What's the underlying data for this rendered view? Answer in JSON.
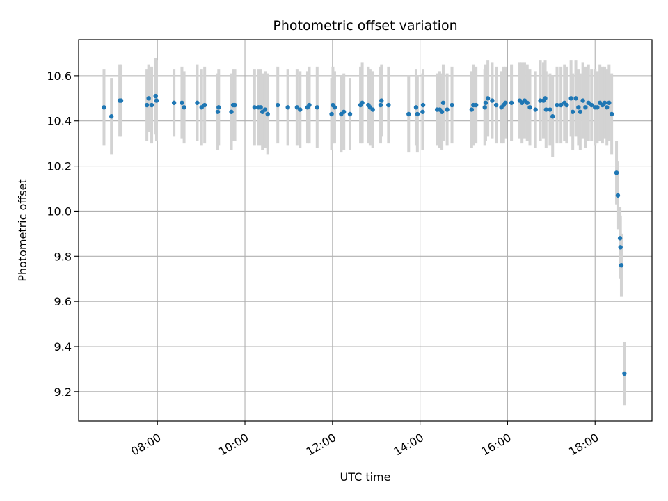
{
  "chart_data": {
    "type": "scatter",
    "title": "Photometric offset variation",
    "xlabel": "UTC time",
    "ylabel": "Photometric offset",
    "x_unit": "hours UTC",
    "xlim": [
      6.2,
      19.3
    ],
    "ylim": [
      9.07,
      10.76
    ],
    "x_ticks": [
      {
        "value": 8,
        "label": "08:00"
      },
      {
        "value": 10,
        "label": "10:00"
      },
      {
        "value": 12,
        "label": "12:00"
      },
      {
        "value": 14,
        "label": "14:00"
      },
      {
        "value": 16,
        "label": "16:00"
      },
      {
        "value": 18,
        "label": "18:00"
      }
    ],
    "y_ticks": [
      {
        "value": 9.2,
        "label": "9.2"
      },
      {
        "value": 9.4,
        "label": "9.4"
      },
      {
        "value": 9.6,
        "label": "9.6"
      },
      {
        "value": 9.8,
        "label": "9.8"
      },
      {
        "value": 10.0,
        "label": "10.0"
      },
      {
        "value": 10.2,
        "label": "10.2"
      },
      {
        "value": 10.4,
        "label": "10.4"
      },
      {
        "value": 10.6,
        "label": "10.6"
      }
    ],
    "grid": true,
    "colors": {
      "point": "#1f77b4",
      "errorbar": "#d3d3d3",
      "grid": "#b0b0b0"
    },
    "series": [
      {
        "points": [
          [
            6.78,
            10.46,
            0.17
          ],
          [
            6.95,
            10.42,
            0.17
          ],
          [
            7.14,
            10.49,
            0.16
          ],
          [
            7.17,
            10.49,
            0.16
          ],
          [
            7.76,
            10.47,
            0.16
          ],
          [
            7.8,
            10.5,
            0.15
          ],
          [
            7.87,
            10.47,
            0.17
          ],
          [
            7.96,
            10.51,
            0.17
          ],
          [
            7.98,
            10.49,
            0.18
          ],
          [
            8.38,
            10.48,
            0.15
          ],
          [
            8.56,
            10.48,
            0.16
          ],
          [
            8.61,
            10.46,
            0.16
          ],
          [
            8.91,
            10.48,
            0.17
          ],
          [
            9.01,
            10.46,
            0.17
          ],
          [
            9.08,
            10.47,
            0.17
          ],
          [
            9.38,
            10.44,
            0.17
          ],
          [
            9.4,
            10.46,
            0.17
          ],
          [
            9.69,
            10.44,
            0.17
          ],
          [
            9.73,
            10.47,
            0.16
          ],
          [
            9.77,
            10.47,
            0.16
          ],
          [
            10.22,
            10.46,
            0.17
          ],
          [
            10.31,
            10.46,
            0.17
          ],
          [
            10.36,
            10.46,
            0.17
          ],
          [
            10.4,
            10.44,
            0.17
          ],
          [
            10.46,
            10.45,
            0.17
          ],
          [
            10.52,
            10.43,
            0.18
          ],
          [
            10.75,
            10.47,
            0.17
          ],
          [
            10.98,
            10.46,
            0.17
          ],
          [
            11.19,
            10.46,
            0.17
          ],
          [
            11.26,
            10.45,
            0.17
          ],
          [
            11.43,
            10.46,
            0.16
          ],
          [
            11.47,
            10.47,
            0.17
          ],
          [
            11.65,
            10.46,
            0.18
          ],
          [
            11.98,
            10.43,
            0.16
          ],
          [
            12.01,
            10.47,
            0.17
          ],
          [
            12.05,
            10.46,
            0.16
          ],
          [
            12.2,
            10.43,
            0.17
          ],
          [
            12.26,
            10.44,
            0.17
          ],
          [
            12.4,
            10.43,
            0.16
          ],
          [
            12.64,
            10.47,
            0.17
          ],
          [
            12.68,
            10.48,
            0.18
          ],
          [
            12.82,
            10.47,
            0.17
          ],
          [
            12.86,
            10.46,
            0.17
          ],
          [
            12.92,
            10.45,
            0.17
          ],
          [
            13.1,
            10.47,
            0.17
          ],
          [
            13.12,
            10.49,
            0.16
          ],
          [
            13.28,
            10.47,
            0.17
          ],
          [
            13.74,
            10.43,
            0.17
          ],
          [
            13.91,
            10.46,
            0.17
          ],
          [
            13.94,
            10.43,
            0.17
          ],
          [
            14.06,
            10.44,
            0.17
          ],
          [
            14.07,
            10.47,
            0.16
          ],
          [
            14.39,
            10.45,
            0.16
          ],
          [
            14.45,
            10.45,
            0.17
          ],
          [
            14.5,
            10.44,
            0.17
          ],
          [
            14.53,
            10.48,
            0.17
          ],
          [
            14.62,
            10.45,
            0.16
          ],
          [
            14.73,
            10.47,
            0.17
          ],
          [
            15.18,
            10.45,
            0.17
          ],
          [
            15.22,
            10.47,
            0.18
          ],
          [
            15.28,
            10.47,
            0.17
          ],
          [
            15.48,
            10.46,
            0.17
          ],
          [
            15.5,
            10.48,
            0.17
          ],
          [
            15.55,
            10.5,
            0.17
          ],
          [
            15.65,
            10.49,
            0.17
          ],
          [
            15.74,
            10.47,
            0.17
          ],
          [
            15.86,
            10.46,
            0.16
          ],
          [
            15.91,
            10.47,
            0.17
          ],
          [
            15.95,
            10.48,
            0.16
          ],
          [
            16.09,
            10.48,
            0.17
          ],
          [
            16.28,
            10.49,
            0.17
          ],
          [
            16.33,
            10.48,
            0.18
          ],
          [
            16.39,
            10.49,
            0.17
          ],
          [
            16.45,
            10.48,
            0.17
          ],
          [
            16.51,
            10.46,
            0.17
          ],
          [
            16.64,
            10.45,
            0.17
          ],
          [
            16.75,
            10.49,
            0.18
          ],
          [
            16.82,
            10.49,
            0.17
          ],
          [
            16.86,
            10.5,
            0.17
          ],
          [
            16.88,
            10.45,
            0.17
          ],
          [
            16.97,
            10.45,
            0.16
          ],
          [
            17.03,
            10.42,
            0.18
          ],
          [
            17.13,
            10.47,
            0.17
          ],
          [
            17.22,
            10.47,
            0.17
          ],
          [
            17.3,
            10.48,
            0.17
          ],
          [
            17.35,
            10.47,
            0.17
          ],
          [
            17.45,
            10.5,
            0.17
          ],
          [
            17.49,
            10.44,
            0.17
          ],
          [
            17.56,
            10.5,
            0.17
          ],
          [
            17.62,
            10.46,
            0.17
          ],
          [
            17.66,
            10.44,
            0.17
          ],
          [
            17.72,
            10.49,
            0.17
          ],
          [
            17.78,
            10.46,
            0.18
          ],
          [
            17.85,
            10.48,
            0.17
          ],
          [
            17.92,
            10.47,
            0.16
          ],
          [
            18.0,
            10.46,
            0.17
          ],
          [
            18.05,
            10.46,
            0.16
          ],
          [
            18.11,
            10.48,
            0.17
          ],
          [
            18.17,
            10.47,
            0.17
          ],
          [
            18.22,
            10.48,
            0.16
          ],
          [
            18.27,
            10.46,
            0.17
          ],
          [
            18.32,
            10.48,
            0.17
          ],
          [
            18.38,
            10.43,
            0.18
          ],
          [
            18.49,
            10.17,
            0.14
          ],
          [
            18.52,
            10.07,
            0.15
          ],
          [
            18.57,
            9.88,
            0.14
          ],
          [
            18.58,
            9.84,
            0.14
          ],
          [
            18.6,
            9.76,
            0.14
          ],
          [
            18.67,
            9.28,
            0.14
          ]
        ]
      }
    ]
  }
}
